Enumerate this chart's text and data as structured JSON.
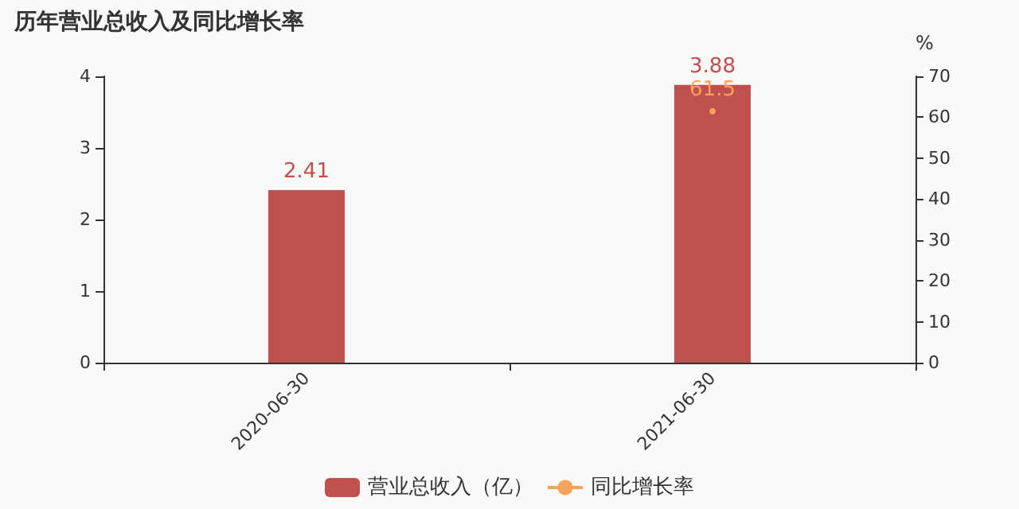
{
  "chart_data": {
    "type": "bar",
    "title": "历年营业总收入及同比增长率",
    "categories": [
      "2020-06-30",
      "2021-06-30"
    ],
    "series": [
      {
        "name": "营业总收入（亿）",
        "color": "#c0504d",
        "values": [
          2.41,
          3.88
        ]
      },
      {
        "name": "同比增长率",
        "type": "line",
        "axis": "y2",
        "color": "#f7a35c",
        "values": [
          null,
          61.5
        ],
        "marker": "circle"
      }
    ],
    "ylim": [
      0,
      4
    ],
    "yticks": [
      0,
      1,
      2,
      3,
      4
    ],
    "y2lim": [
      0,
      70
    ],
    "y2ticks": [
      0,
      10,
      20,
      30,
      40,
      50,
      60,
      70
    ],
    "y2label": "%",
    "data_labels": true,
    "legend": "bottom",
    "grid": false
  }
}
